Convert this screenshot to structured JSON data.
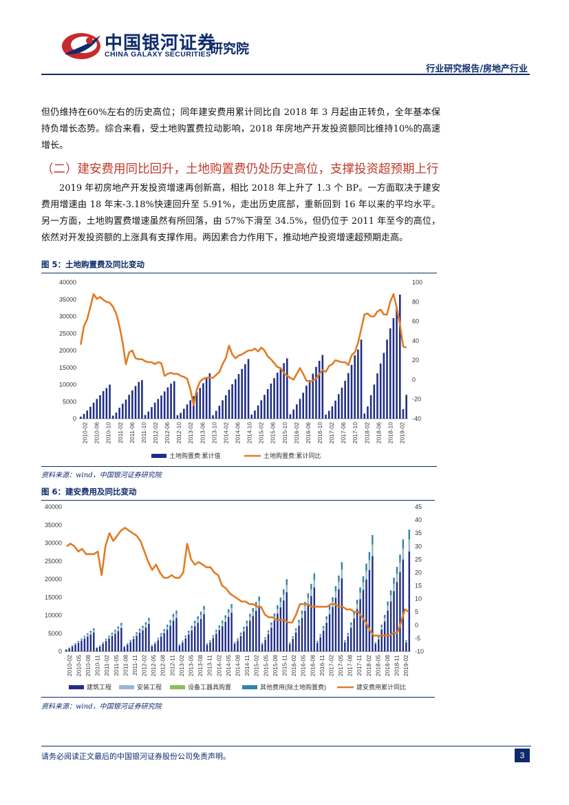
{
  "header": {
    "logo_cn": "中国银河证券",
    "logo_en": "CHINA GALAXY SECURITIES",
    "institute": "研究院",
    "category": "行业研究报告/房地产行业"
  },
  "body": {
    "para1": "但仍维持在60%左右的历史高位；同年建安费用累计同比自 2018 年 3 月起由正转负，全年基本保持负增长态势。综合来看，受土地购置费拉动影响，2018 年房地产开发投资额同比维持10%的高速增长。",
    "section_title": "（二）建安费用同比回升，土地购置费仍处历史高位，支撑投资超预期上行",
    "para2": "2019 年初房地产开发投资增速再创新高，相比 2018 年上升了 1.3 个 BP。一方面取决于建安费用增速由 18 年末-3.18%快速回升至 5.91%，走出历史底部，重新回到 16 年以来的平均水平。另一方面，土地购置费增速虽然有所回落，由 57%下滑至 34.5%，但仍位于 2011 年至今的高位，依然对开发投资额的上涨具有支撑作用。两因素合力作用下，推动地产投资增速超预期走高。"
  },
  "figure5": {
    "title": "图 5：土地购置费及同比变动",
    "source": "资料来源：wind，中国银河证券研究院"
  },
  "figure6": {
    "title": "图 6：建安费用及同比变动",
    "source": "资料来源：wind，中国银河证券研究院"
  },
  "footer": {
    "disclaimer": "请务必阅读正文最后的中国银河证券股份公司免责声明。",
    "page": "3"
  },
  "chart_data": [
    {
      "type": "bar+line",
      "title": "图 5：土地购置费及同比变动",
      "left_axis": {
        "ylim": [
          0,
          40000
        ],
        "ticks": [
          "0",
          "5000",
          "10000",
          "15000",
          "20000",
          "25000",
          "30000",
          "35000",
          "40000"
        ]
      },
      "right_axis": {
        "ylim": [
          -40,
          100
        ],
        "ticks": [
          "-40",
          "-20",
          "0",
          "20",
          "40",
          "60",
          "80",
          "100"
        ]
      },
      "x_tick_labels": [
        "2010-02",
        "2010-06",
        "2010-10",
        "2011-02",
        "2011-06",
        "2011-10",
        "2012-02",
        "2012-06",
        "2012-10",
        "2013-02",
        "2013-06",
        "2013-10",
        "2014-02",
        "2014-06",
        "2014-10",
        "2015-02",
        "2015-06",
        "2015-10",
        "2016-02",
        "2016-06",
        "2016-10",
        "2017-02",
        "2017-06",
        "2017-10",
        "2018-02",
        "2018-06",
        "2018-10",
        "2019-02"
      ],
      "legend": [
        "土地购置费:累计值",
        "土地购置费:累计同比"
      ],
      "bar_color": "#1f2d86",
      "line_color": "#e07b22",
      "bars": [
        600,
        1400,
        2400,
        3500,
        4700,
        5800,
        6900,
        8100,
        9000,
        10000,
        900,
        1800,
        3200,
        4400,
        5600,
        7000,
        8300,
        9600,
        10800,
        11300,
        1100,
        2100,
        3400,
        4700,
        5800,
        6800,
        8000,
        9200,
        10300,
        11000,
        1000,
        1700,
        2900,
        4200,
        5400,
        6600,
        7800,
        9000,
        10400,
        12000,
        13300,
        1000,
        2300,
        3800,
        5400,
        6900,
        8500,
        10100,
        11600,
        13100,
        14600,
        16000,
        17500,
        1200,
        2400,
        3900,
        5400,
        7000,
        8700,
        10300,
        11900,
        13500,
        15000,
        16300,
        17700,
        1300,
        2700,
        4200,
        5800,
        7600,
        9700,
        11300,
        13200,
        15200,
        17000,
        18700,
        1200,
        2300,
        3600,
        5300,
        7200,
        9100,
        11100,
        13400,
        15800,
        18600,
        20300,
        23200,
        1500,
        3600,
        6900,
        10000,
        13300,
        16200,
        19300,
        23200,
        26500,
        29500,
        32700,
        36400,
        2800,
        7000
      ],
      "line": [
        36,
        55,
        62,
        75,
        88,
        83,
        85,
        82,
        80,
        79,
        75,
        68,
        55,
        38,
        16,
        28,
        30,
        22,
        21,
        21,
        19,
        18,
        18,
        16,
        18,
        17,
        4,
        6,
        7,
        6,
        6,
        4,
        3,
        1,
        -10,
        -26,
        -10,
        -2,
        1,
        2,
        2,
        2,
        5,
        8,
        16,
        22,
        35,
        26,
        22,
        25,
        26,
        28,
        30,
        30,
        32,
        29,
        33,
        30,
        24,
        21,
        17,
        13,
        12,
        7,
        4,
        2,
        0,
        6,
        12,
        6,
        -1,
        -2,
        -1,
        1,
        6,
        10,
        8,
        14,
        16,
        20,
        19,
        18,
        18,
        15,
        25,
        28,
        38,
        52,
        67,
        68,
        65,
        65,
        70,
        72,
        67,
        67,
        80,
        88,
        74,
        57,
        34,
        33
      ]
    },
    {
      "type": "stacked-bar+line",
      "title": "图 6：建安费用及同比变动",
      "left_axis": {
        "ylim": [
          0,
          40000
        ],
        "ticks": [
          "0",
          "5000",
          "10000",
          "15000",
          "20000",
          "25000",
          "30000",
          "35000",
          "40000"
        ]
      },
      "right_axis": {
        "ylim": [
          -10,
          45
        ],
        "ticks": [
          "-10",
          "-5",
          "0",
          "5",
          "10",
          "15",
          "20",
          "25",
          "30",
          "35",
          "40",
          "45"
        ]
      },
      "x_tick_labels": [
        "2010-02",
        "2010-05",
        "2010-08",
        "2010-11",
        "2011-02",
        "2011-05",
        "2011-08",
        "2011-11",
        "2012-02",
        "2012-05",
        "2012-08",
        "2012-11",
        "2013-02",
        "2013-05",
        "2013-08",
        "2013-11",
        "2014-02",
        "2014-05",
        "2014-08",
        "2014-11",
        "2015-02",
        "2015-05",
        "2015-08",
        "2015-11",
        "2016-02",
        "2016-05",
        "2016-08",
        "2016-11",
        "2017-02",
        "2017-05",
        "2017-08",
        "2017-11",
        "2018-02",
        "2018-05",
        "2018-08",
        "2018-11",
        "2019-02"
      ],
      "legend": [
        "建筑工程",
        "安装工程",
        "设备工器具购置",
        "其他费用(除土地购置费)",
        "建安费用累计同比"
      ],
      "colors": [
        "#1f2d86",
        "#9ab4d8",
        "#8bbf58",
        "#2e86a8",
        "#e07b22"
      ],
      "totals": [
        600,
        1100,
        1700,
        2300,
        2900,
        3600,
        4300,
        5000,
        5700,
        6400,
        1200,
        1700,
        2600,
        3500,
        4400,
        5200,
        6000,
        6900,
        7900,
        1500,
        2300,
        3200,
        4200,
        5300,
        6300,
        7100,
        8100,
        9300,
        1800,
        2600,
        3700,
        5000,
        6200,
        7400,
        8700,
        10400,
        11300,
        2000,
        3000,
        4400,
        5700,
        7100,
        8500,
        9700,
        11000,
        12600,
        2300,
        3100,
        4500,
        6000,
        7200,
        8500,
        10000,
        11700,
        13100,
        2600,
        3600,
        5200,
        6800,
        8500,
        10400,
        12000,
        13700,
        15200,
        2400,
        3900,
        5800,
        8000,
        10500,
        12800,
        14900,
        17200,
        20000,
        2500,
        4200,
        6400,
        8700,
        11300,
        13700,
        16100,
        18700,
        21600,
        2900,
        4800,
        7000,
        9700,
        12600,
        15000,
        18100,
        21000,
        24700,
        3100,
        5100,
        8000,
        11100,
        14300,
        17700,
        20800,
        24300,
        27500,
        32200,
        2600,
        4100,
        7400,
        10100,
        13800,
        16900,
        20400,
        23400,
        26800,
        31000,
        3100,
        33700
      ],
      "line": [
        30,
        31,
        30,
        28,
        29,
        27,
        27,
        27,
        28,
        19,
        30,
        35,
        32,
        34,
        36,
        37,
        36,
        35,
        34,
        32,
        28,
        24,
        21,
        23,
        20,
        18,
        18,
        19,
        18,
        18,
        20,
        31,
        25,
        23,
        24,
        23,
        22,
        22,
        20,
        19,
        15,
        14,
        12,
        11,
        10,
        9,
        9,
        8,
        8,
        7,
        7,
        4,
        3,
        3,
        2,
        2,
        2,
        1,
        1,
        4,
        8,
        8,
        8,
        7,
        7,
        7,
        7,
        7,
        8,
        8,
        7,
        7,
        6,
        6,
        5,
        5,
        3,
        1,
        -2,
        -4,
        -4,
        -4,
        -4,
        -4,
        -3,
        -3,
        1,
        6,
        5
      ]
    }
  ]
}
